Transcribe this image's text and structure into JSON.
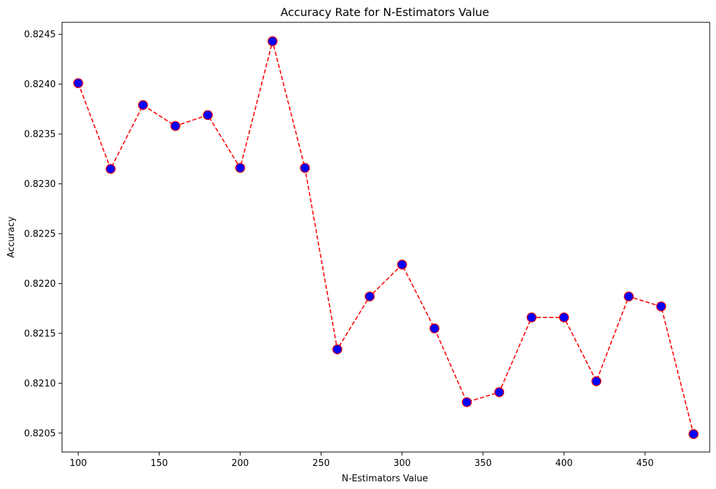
{
  "chart_data": {
    "type": "line",
    "title": "Accuracy Rate for N-Estimators Value",
    "xlabel": "N-Estimators Value",
    "ylabel": "Accuracy",
    "xlim": [
      90,
      490
    ],
    "ylim": [
      0.82031,
      0.82462
    ],
    "xticks": [
      100,
      150,
      200,
      250,
      300,
      350,
      400,
      450
    ],
    "yticks": [
      0.8205,
      0.821,
      0.8215,
      0.822,
      0.8225,
      0.823,
      0.8235,
      0.824,
      0.8245
    ],
    "grid": false,
    "line_color": "#ff0000",
    "line_style": "dashed",
    "marker": "circle",
    "marker_face_color": "#0000ff",
    "marker_edge_color": "#ff0000",
    "series": [
      {
        "x": [
          100,
          120,
          140,
          160,
          180,
          200,
          220,
          240,
          260,
          280,
          300,
          320,
          340,
          360,
          380,
          400,
          420,
          440,
          460,
          480
        ],
        "y": [
          0.82401,
          0.82315,
          0.82379,
          0.82358,
          0.82369,
          0.82316,
          0.82443,
          0.82316,
          0.82134,
          0.82187,
          0.82219,
          0.82155,
          0.82081,
          0.82091,
          0.82166,
          0.82166,
          0.82102,
          0.82187,
          0.82177,
          0.82049
        ]
      }
    ]
  }
}
